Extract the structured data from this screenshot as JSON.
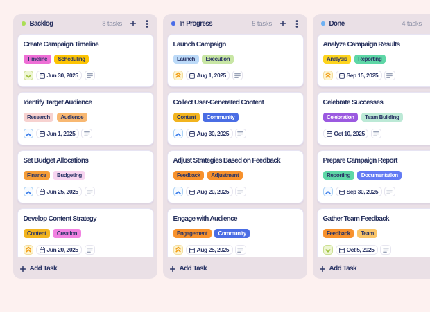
{
  "board": {
    "page_background": "#fdf1f0",
    "column_background": "#eae0e6",
    "priority_styles": {
      "low": {
        "background": "#eef6d3",
        "border": "#cbdf92",
        "icon_color": "#9fc03c",
        "icon": "chevron-down"
      },
      "high": {
        "background": "#f7fbff",
        "border": "#abd2f6",
        "icon_color": "#3a7ce9",
        "icon": "chevron-up"
      },
      "urgent": {
        "background": "#fdf4d0",
        "border": "#f3dd9e",
        "icon_color": "#f29d15",
        "icon": "double-chevron-up"
      }
    },
    "columns": [
      {
        "name": "Backlog",
        "dot_color": "#aade55",
        "count_label": "8 tasks",
        "add_task_label": "Add Task",
        "cards": [
          {
            "title": "Create Campaign Timeline",
            "tags": [
              {
                "label": "Timeline",
                "bg": "#ee6fd6",
                "fg": "#2b3566"
              },
              {
                "label": "Scheduling",
                "bg": "#fdc403",
                "fg": "#2b3566"
              }
            ],
            "priority": "low",
            "due_date": "Jun 30, 2025"
          },
          {
            "title": "Identify Target Audience",
            "tags": [
              {
                "label": "Research",
                "bg": "#f7d2d0",
                "fg": "#2b3566"
              },
              {
                "label": "Audience",
                "bg": "#f8b872",
                "fg": "#2b3566"
              }
            ],
            "priority": "high",
            "due_date": "Jun 1, 2025"
          },
          {
            "title": "Set Budget Allocations",
            "tags": [
              {
                "label": "Finance",
                "bg": "#f59d38",
                "fg": "#2b3566"
              },
              {
                "label": "Budgeting",
                "bg": "#f7d4f0",
                "fg": "#2b3566"
              }
            ],
            "priority": "high",
            "due_date": "Jun 25, 2025"
          },
          {
            "title": "Develop Content Strategy",
            "tags": [
              {
                "label": "Content",
                "bg": "#f2b41f",
                "fg": "#2b3566"
              },
              {
                "label": "Creation",
                "bg": "#f181e1",
                "fg": "#2b3566"
              }
            ],
            "priority": "urgent",
            "due_date": "Jun 20, 2025"
          }
        ]
      },
      {
        "name": "In Progress",
        "dot_color": "#4a6de8",
        "count_label": "5 tasks",
        "add_task_label": "Add Task",
        "cards": [
          {
            "title": "Launch Campaign",
            "tags": [
              {
                "label": "Launch",
                "bg": "#bcdaf8",
                "fg": "#2b3566"
              },
              {
                "label": "Execution",
                "bg": "#c8e6a4",
                "fg": "#2b3566"
              }
            ],
            "priority": "urgent",
            "due_date": "Aug 1, 2025"
          },
          {
            "title": "Collect User-Generated Content",
            "tags": [
              {
                "label": "Content",
                "bg": "#f2b41f",
                "fg": "#2b3566"
              },
              {
                "label": "Community",
                "bg": "#4a6de4",
                "fg": "#ffffff"
              }
            ],
            "priority": "high",
            "due_date": "Aug 30, 2025"
          },
          {
            "title": "Adjust Strategies Based on Feedback",
            "tags": [
              {
                "label": "Feedback",
                "bg": "#f7912c",
                "fg": "#2b3566"
              },
              {
                "label": "Adjustment",
                "bg": "#f7912c",
                "fg": "#2b3566"
              }
            ],
            "priority": "high",
            "due_date": "Aug 20, 2025"
          },
          {
            "title": "Engage with Audience",
            "tags": [
              {
                "label": "Engagement",
                "bg": "#f7912c",
                "fg": "#2b3566"
              },
              {
                "label": "Community",
                "bg": "#4a6de4",
                "fg": "#ffffff"
              }
            ],
            "priority": "urgent",
            "due_date": "Aug 25, 2025"
          }
        ]
      },
      {
        "name": "Done",
        "dot_color": "#6fb1f3",
        "count_label": "4 tasks",
        "add_task_label": "Add Task",
        "cards": [
          {
            "title": "Analyze Campaign Results",
            "tags": [
              {
                "label": "Analysis",
                "bg": "#fdd41e",
                "fg": "#2b3566"
              },
              {
                "label": "Reporting",
                "bg": "#5ed7a6",
                "fg": "#2b3566"
              }
            ],
            "priority": "urgent",
            "due_date": "Sep 15, 2025"
          },
          {
            "title": "Celebrate Successes",
            "tags": [
              {
                "label": "Celebration",
                "bg": "#9b59e0",
                "fg": "#ffffff"
              },
              {
                "label": "Team Building",
                "bg": "#bce9d6",
                "fg": "#2b3566"
              }
            ],
            "priority": "none",
            "due_date": "Oct 10, 2025"
          },
          {
            "title": "Prepare Campaign Report",
            "tags": [
              {
                "label": "Reporting",
                "bg": "#5ed7a6",
                "fg": "#2b3566"
              },
              {
                "label": "Documentation",
                "bg": "#637bf4",
                "fg": "#ffffff"
              }
            ],
            "priority": "high",
            "due_date": "Sep 30, 2025"
          },
          {
            "title": "Gather Team Feedback",
            "tags": [
              {
                "label": "Feedback",
                "bg": "#f7912c",
                "fg": "#2b3566"
              },
              {
                "label": "Team",
                "bg": "#fac568",
                "fg": "#2b3566"
              }
            ],
            "priority": "low",
            "due_date": "Oct 5, 2025"
          }
        ]
      }
    ]
  }
}
